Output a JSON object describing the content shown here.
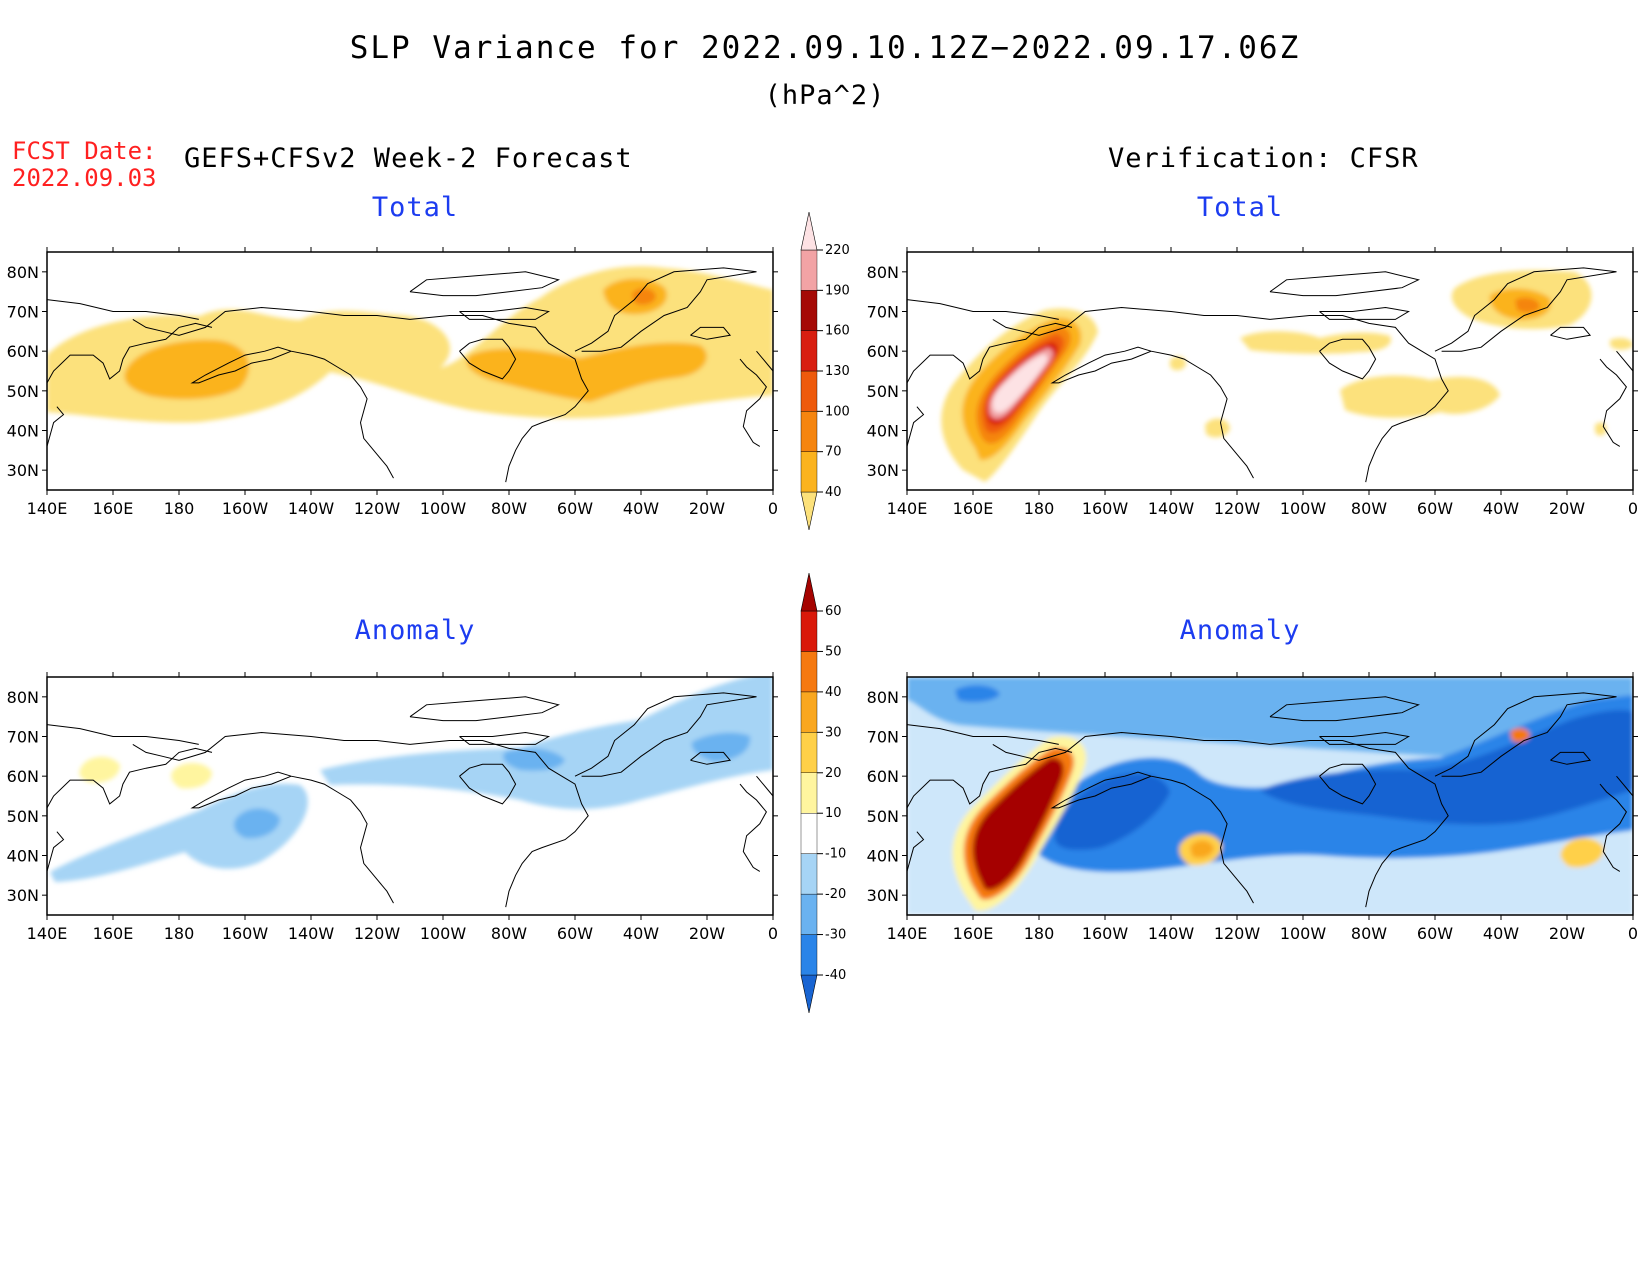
{
  "title": "SLP Variance for 2022.09.10.12Z−2022.09.17.06Z",
  "units": "(hPa^2)",
  "fcst_label": "FCST Date:",
  "fcst_date": "2022.09.03",
  "left_heading": "GEFS+CFSv2 Week-2 Forecast",
  "right_heading": "Verification: CFSR",
  "panels": {
    "fc_total": {
      "title": "Total"
    },
    "vf_total": {
      "title": "Total"
    },
    "fc_anom": {
      "title": "Anomaly"
    },
    "vf_anom": {
      "title": "Anomaly"
    }
  },
  "axes": {
    "lat_labels": [
      "80N",
      "70N",
      "60N",
      "50N",
      "40N",
      "30N"
    ],
    "lon_labels": [
      "140E",
      "160E",
      "180",
      "160W",
      "140W",
      "120W",
      "100W",
      "80W",
      "60W",
      "40W",
      "20W",
      "0"
    ],
    "lon_range": [
      140,
      360
    ],
    "lat_range": [
      25,
      85
    ]
  },
  "colorbar_total": {
    "levels": [
      "40",
      "70",
      "100",
      "130",
      "160",
      "190",
      "220"
    ],
    "colors": [
      "#fce17b",
      "#fbb31e",
      "#f5850f",
      "#ee5a0c",
      "#d81e10",
      "#a50a06",
      "#f2a3a5",
      "#fde2e4"
    ]
  },
  "colorbar_anom": {
    "levels": [
      "-40",
      "-30",
      "-20",
      "-10",
      "10",
      "20",
      "30",
      "40",
      "50",
      "60"
    ],
    "colors": [
      "#1864d2",
      "#2a84e8",
      "#6ab2f0",
      "#a6d4f5",
      "#ffffff",
      "#fff59f",
      "#ffd048",
      "#f9a71f",
      "#f57910",
      "#d9190a",
      "#a50300"
    ]
  },
  "chart_data": {
    "type": "heatmap",
    "title": "SLP Variance for 2022.09.10.12Z−2022.09.17.06Z",
    "units": "(hPa^2)",
    "x_range": [
      140,
      360
    ],
    "y_range": [
      25,
      85
    ],
    "panels": [
      {
        "name": "GEFS+CFSv2 Week-2 Forecast Total",
        "features": [
          {
            "lon": 178,
            "lat": 52,
            "value": 85
          },
          {
            "lon": 310,
            "lat": 56,
            "value": 85
          },
          {
            "lon": 320,
            "lat": 73,
            "value": 100
          },
          {
            "lon": 290,
            "lat": 52,
            "value": 55
          }
        ]
      },
      {
        "name": "Verification: CFSR Total",
        "features": [
          {
            "lon": 171,
            "lat": 52,
            "value": 220
          },
          {
            "lon": 325,
            "lat": 71,
            "value": 110
          },
          {
            "lon": 310,
            "lat": 48,
            "value": 55
          }
        ]
      },
      {
        "name": "GEFS+CFSv2 Week-2 Forecast Anomaly",
        "features": [
          {
            "lon": 203,
            "lat": 49,
            "value": -22
          },
          {
            "lon": 149,
            "lat": 63,
            "value": 15
          },
          {
            "lon": 174,
            "lat": 60,
            "value": 15
          },
          {
            "lon": 343,
            "lat": 65,
            "value": -20
          }
        ]
      },
      {
        "name": "Verification: CFSR Anomaly",
        "features": [
          {
            "lon": 169,
            "lat": 50,
            "value": 60
          },
          {
            "lon": 212,
            "lat": 53,
            "value": -40
          },
          {
            "lon": 290,
            "lat": 57,
            "value": -40
          },
          {
            "lon": 332,
            "lat": 60,
            "value": -40
          },
          {
            "lon": 230,
            "lat": 41,
            "value": 30
          },
          {
            "lon": 342,
            "lat": 41,
            "value": 25
          },
          {
            "lon": 328,
            "lat": 72,
            "value": 35
          },
          {
            "lon": 167,
            "lat": 81,
            "value": -30
          }
        ]
      }
    ]
  }
}
